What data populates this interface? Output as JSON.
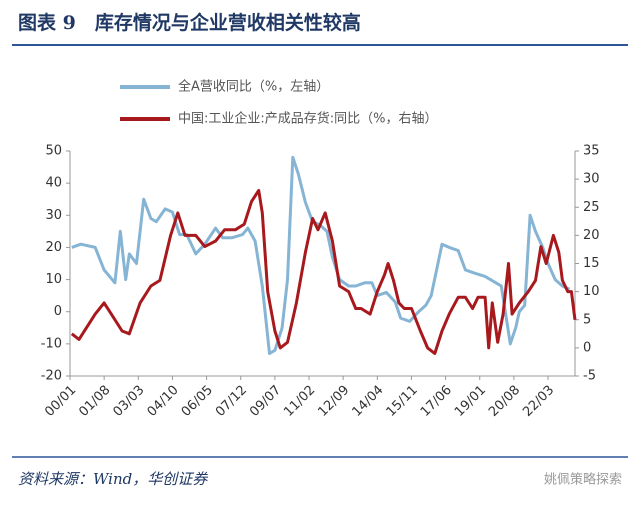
{
  "chart_data": {
    "type": "line",
    "title": "图表 9　库存情况与企业营收相关性较高",
    "source": "资料来源：Wind，华创证券",
    "watermark": "姚佩策略探索",
    "xlim": [
      0,
      281
    ],
    "xticks": [
      {
        "value": 0,
        "label": "00/01"
      },
      {
        "value": 19,
        "label": "01/08"
      },
      {
        "value": 38,
        "label": "03/03"
      },
      {
        "value": 57,
        "label": "04/10"
      },
      {
        "value": 76,
        "label": "06/05"
      },
      {
        "value": 95,
        "label": "07/12"
      },
      {
        "value": 114,
        "label": "09/07"
      },
      {
        "value": 133,
        "label": "11/02"
      },
      {
        "value": 152,
        "label": "12/09"
      },
      {
        "value": 171,
        "label": "14/04"
      },
      {
        "value": 190,
        "label": "15/11"
      },
      {
        "value": 209,
        "label": "17/06"
      },
      {
        "value": 228,
        "label": "19/01"
      },
      {
        "value": 247,
        "label": "20/08"
      },
      {
        "value": 266,
        "label": "22/03"
      }
    ],
    "ylim": [
      -20,
      50
    ],
    "yticks": [
      -20,
      -10,
      0,
      10,
      20,
      30,
      40,
      50
    ],
    "y2lim": [
      -5,
      35
    ],
    "y2ticks": [
      -5,
      0,
      5,
      10,
      15,
      20,
      25,
      30,
      35
    ],
    "series": [
      {
        "name": "全A营收同比（%，左轴）",
        "color": "#86b4d4",
        "x": [
          1,
          6,
          14,
          19,
          25,
          28,
          31,
          33,
          37,
          41,
          45,
          48,
          53,
          57,
          61,
          65,
          70,
          75,
          81,
          85,
          90,
          96,
          99,
          103,
          107,
          111,
          114,
          118,
          121,
          124,
          127,
          131,
          135,
          139,
          143,
          146,
          150,
          155,
          159,
          164,
          168,
          171,
          176,
          181,
          184,
          189,
          194,
          198,
          201,
          207,
          211,
          216,
          220,
          225,
          231,
          237,
          240,
          245,
          248,
          250,
          253,
          256,
          259,
          263,
          266,
          270,
          274,
          278
        ],
        "values": [
          20,
          21,
          20,
          13,
          9,
          25,
          10,
          18,
          15,
          35,
          29,
          28,
          32,
          31,
          24,
          24,
          18,
          21,
          26,
          23,
          23,
          24,
          26,
          22,
          8,
          -13,
          -12,
          -5,
          10,
          48,
          43,
          34,
          28,
          27,
          25,
          17,
          10,
          8,
          8,
          9,
          9,
          5,
          6,
          3,
          -2,
          -3,
          0,
          2,
          5,
          21,
          20,
          19,
          13,
          12,
          11,
          9,
          8,
          -10,
          -5,
          0,
          2,
          30,
          25,
          20,
          15,
          10,
          8,
          7
        ]
      },
      {
        "name": "中国:工业企业:产成品存货:同比（%，右轴）",
        "color": "#a8191e",
        "axis": "y2",
        "x": [
          1,
          5,
          14,
          19,
          23,
          29,
          33,
          39,
          45,
          50,
          56,
          60,
          64,
          70,
          75,
          81,
          86,
          92,
          97,
          101,
          105,
          107,
          110,
          114,
          117,
          121,
          126,
          131,
          135,
          138,
          142,
          146,
          150,
          155,
          159,
          162,
          167,
          171,
          175,
          177,
          180,
          183,
          186,
          190,
          195,
          199,
          203,
          207,
          211,
          216,
          220,
          224,
          227,
          231,
          233,
          235,
          238,
          241,
          244,
          246,
          250,
          255,
          259,
          262,
          265,
          269,
          272,
          274,
          277,
          279,
          281
        ],
        "values": [
          2.5,
          1.5,
          6,
          8,
          6,
          3,
          2.5,
          8,
          11,
          12,
          20,
          24,
          20,
          20,
          18,
          19,
          21,
          21,
          22,
          26,
          28,
          24,
          10,
          3,
          0,
          1,
          8,
          17,
          23,
          21,
          24,
          19,
          11,
          10,
          7,
          7,
          6,
          10,
          13,
          15,
          12,
          8,
          7,
          7,
          3,
          0,
          -1,
          3,
          6,
          9,
          9,
          7,
          9,
          9,
          0,
          8,
          1,
          6,
          15,
          6,
          8,
          10,
          12,
          18,
          15,
          20,
          17,
          12,
          10,
          10,
          5
        ]
      }
    ]
  }
}
